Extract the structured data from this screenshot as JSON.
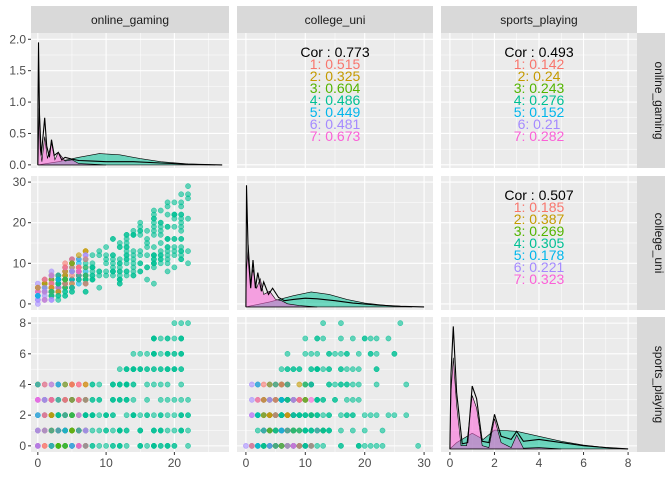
{
  "chart_data": {
    "type": "scatter",
    "variables": [
      "online_gaming",
      "college_uni",
      "sports_playing"
    ],
    "axis_ticks": {
      "online_gaming": {
        "x": [
          0,
          10,
          20
        ],
        "xlim": [
          -1,
          28
        ]
      },
      "college_uni": {
        "x": [
          0,
          10,
          20,
          30
        ],
        "y": [
          0,
          10,
          20,
          30
        ],
        "xlim": [
          -1.5,
          31.5
        ],
        "ylim": [
          -1.5,
          31.5
        ]
      },
      "sports_playing": {
        "x": [
          0,
          2,
          4,
          6,
          8
        ],
        "y": [
          0,
          2,
          4,
          6,
          8
        ],
        "xlim": [
          -0.4,
          8.4
        ],
        "ylim": [
          -0.4,
          8.4
        ]
      },
      "density_y": {
        "ticks": [
          "0.0",
          "0.5",
          "1.0",
          "1.5",
          "2.0"
        ],
        "values": [
          0,
          0.5,
          1.0,
          1.5,
          2.0
        ],
        "ylim": [
          -0.05,
          2.1
        ]
      }
    },
    "group_colors": {
      "1": "#F8766D",
      "2": "#C49A00",
      "3": "#53B400",
      "4": "#00C094",
      "5": "#00B6EB",
      "6": "#A58AFF",
      "7": "#FB61D7"
    },
    "correlations": [
      {
        "pair": [
          "online_gaming",
          "college_uni"
        ],
        "overall_label": "Cor : 0.773",
        "groups": [
          "1: 0.515",
          "2: 0.325",
          "3: 0.604",
          "4: 0.486",
          "5: 0.449",
          "6: 0.481",
          "7: 0.673"
        ]
      },
      {
        "pair": [
          "online_gaming",
          "sports_playing"
        ],
        "overall_label": "Cor : 0.493",
        "groups": [
          "1: 0.142",
          "2: 0.24",
          "3: 0.243",
          "4: 0.276",
          "5: 0.152",
          "6: 0.21",
          "7: 0.282"
        ]
      },
      {
        "pair": [
          "college_uni",
          "sports_playing"
        ],
        "overall_label": "Cor : 0.507",
        "groups": [
          "1: 0.185",
          "2: 0.387",
          "3: 0.269",
          "4: 0.305",
          "5: 0.178",
          "6: 0.221",
          "7: 0.323"
        ]
      }
    ],
    "densities": {
      "online_gaming": {
        "magenta": [
          [
            0,
            0
          ],
          [
            0.05,
            0.1
          ],
          [
            0.2,
            0.9
          ],
          [
            0.35,
            0.25
          ],
          [
            0.6,
            0.05
          ],
          [
            1,
            0.45
          ],
          [
            1.4,
            0.1
          ],
          [
            2,
            0.35
          ],
          [
            2.5,
            0.08
          ],
          [
            3,
            0.2
          ],
          [
            4,
            0.06
          ],
          [
            5,
            0.08
          ],
          [
            6,
            0.02
          ],
          [
            8,
            0.01
          ],
          [
            10,
            0
          ]
        ],
        "teal": [
          [
            0,
            0
          ],
          [
            3,
            0.05
          ],
          [
            6,
            0.12
          ],
          [
            9,
            0.18
          ],
          [
            12,
            0.16
          ],
          [
            15,
            0.1
          ],
          [
            18,
            0.05
          ],
          [
            22,
            0.015
          ],
          [
            26,
            0
          ]
        ],
        "overall": [
          [
            0,
            0
          ],
          [
            0.03,
            1.0
          ],
          [
            0.1,
            1.95
          ],
          [
            0.25,
            0.8
          ],
          [
            0.5,
            0.15
          ],
          [
            0.8,
            0.5
          ],
          [
            1,
            0.75
          ],
          [
            1.3,
            0.3
          ],
          [
            1.7,
            0.12
          ],
          [
            2,
            0.4
          ],
          [
            2.4,
            0.15
          ],
          [
            3,
            0.2
          ],
          [
            3.5,
            0.08
          ],
          [
            4,
            0.12
          ],
          [
            5,
            0.09
          ],
          [
            6,
            0.07
          ],
          [
            8,
            0.06
          ],
          [
            10,
            0.05
          ],
          [
            14,
            0.05
          ],
          [
            18,
            0.03
          ],
          [
            22,
            0.01
          ],
          [
            27,
            0
          ]
        ]
      },
      "college_uni": {
        "magenta": [
          [
            0,
            0
          ],
          [
            0.1,
            0.6
          ],
          [
            0.4,
            1.0
          ],
          [
            0.8,
            0.4
          ],
          [
            1.2,
            0.6
          ],
          [
            1.8,
            0.3
          ],
          [
            2.4,
            0.45
          ],
          [
            3,
            0.2
          ],
          [
            4,
            0.25
          ],
          [
            5,
            0.12
          ],
          [
            6,
            0.1
          ],
          [
            7,
            0.05
          ],
          [
            9,
            0.02
          ],
          [
            12,
            0
          ]
        ],
        "teal": [
          [
            0,
            0
          ],
          [
            4,
            0.08
          ],
          [
            8,
            0.18
          ],
          [
            11,
            0.24
          ],
          [
            14,
            0.2
          ],
          [
            17,
            0.12
          ],
          [
            20,
            0.06
          ],
          [
            24,
            0.02
          ],
          [
            28,
            0
          ]
        ],
        "overall": [
          [
            0,
            0
          ],
          [
            0.1,
            1.95
          ],
          [
            0.4,
            0.8
          ],
          [
            0.8,
            0.3
          ],
          [
            1.2,
            0.75
          ],
          [
            1.6,
            0.3
          ],
          [
            2,
            0.55
          ],
          [
            2.6,
            0.25
          ],
          [
            3,
            0.4
          ],
          [
            3.8,
            0.2
          ],
          [
            4.5,
            0.3
          ],
          [
            5.5,
            0.15
          ],
          [
            6.5,
            0.1
          ],
          [
            8,
            0.12
          ],
          [
            10,
            0.14
          ],
          [
            12,
            0.13
          ],
          [
            15,
            0.1
          ],
          [
            18,
            0.06
          ],
          [
            22,
            0.03
          ],
          [
            26,
            0.01
          ],
          [
            30,
            0
          ]
        ]
      },
      "sports_playing": {
        "magenta": [
          [
            0,
            0
          ],
          [
            0.05,
            0.9
          ],
          [
            0.15,
            1.45
          ],
          [
            0.3,
            0.7
          ],
          [
            0.5,
            0.05
          ],
          [
            0.75,
            0.05
          ],
          [
            1,
            0.85
          ],
          [
            1.2,
            0.65
          ],
          [
            1.45,
            0.05
          ],
          [
            1.75,
            0.02
          ],
          [
            2,
            0.48
          ],
          [
            2.3,
            0.1
          ],
          [
            2.75,
            0.02
          ],
          [
            3,
            0.22
          ],
          [
            3.3,
            0.01
          ],
          [
            4,
            0.02
          ],
          [
            5,
            0
          ]
        ],
        "teal": [
          [
            0,
            0
          ],
          [
            0.3,
            0.1
          ],
          [
            1,
            0.25
          ],
          [
            1.5,
            0.15
          ],
          [
            2,
            0.3
          ],
          [
            3,
            0.28
          ],
          [
            4,
            0.2
          ],
          [
            5,
            0.12
          ],
          [
            6,
            0.06
          ],
          [
            7,
            0.02
          ],
          [
            8,
            0
          ]
        ],
        "overall": [
          [
            0,
            0
          ],
          [
            0.05,
            1.2
          ],
          [
            0.15,
            1.95
          ],
          [
            0.3,
            0.9
          ],
          [
            0.55,
            0.08
          ],
          [
            0.8,
            0.1
          ],
          [
            1,
            1.0
          ],
          [
            1.2,
            0.8
          ],
          [
            1.45,
            0.12
          ],
          [
            1.75,
            0.1
          ],
          [
            2,
            0.55
          ],
          [
            2.3,
            0.2
          ],
          [
            2.75,
            0.15
          ],
          [
            3,
            0.28
          ],
          [
            3.3,
            0.12
          ],
          [
            4,
            0.15
          ],
          [
            5,
            0.1
          ],
          [
            6,
            0.05
          ],
          [
            7,
            0.02
          ],
          [
            8,
            0
          ]
        ]
      }
    },
    "density_colors": {
      "magenta": "#FB61D7",
      "teal": "#00C094",
      "overall": "#000000"
    }
  }
}
